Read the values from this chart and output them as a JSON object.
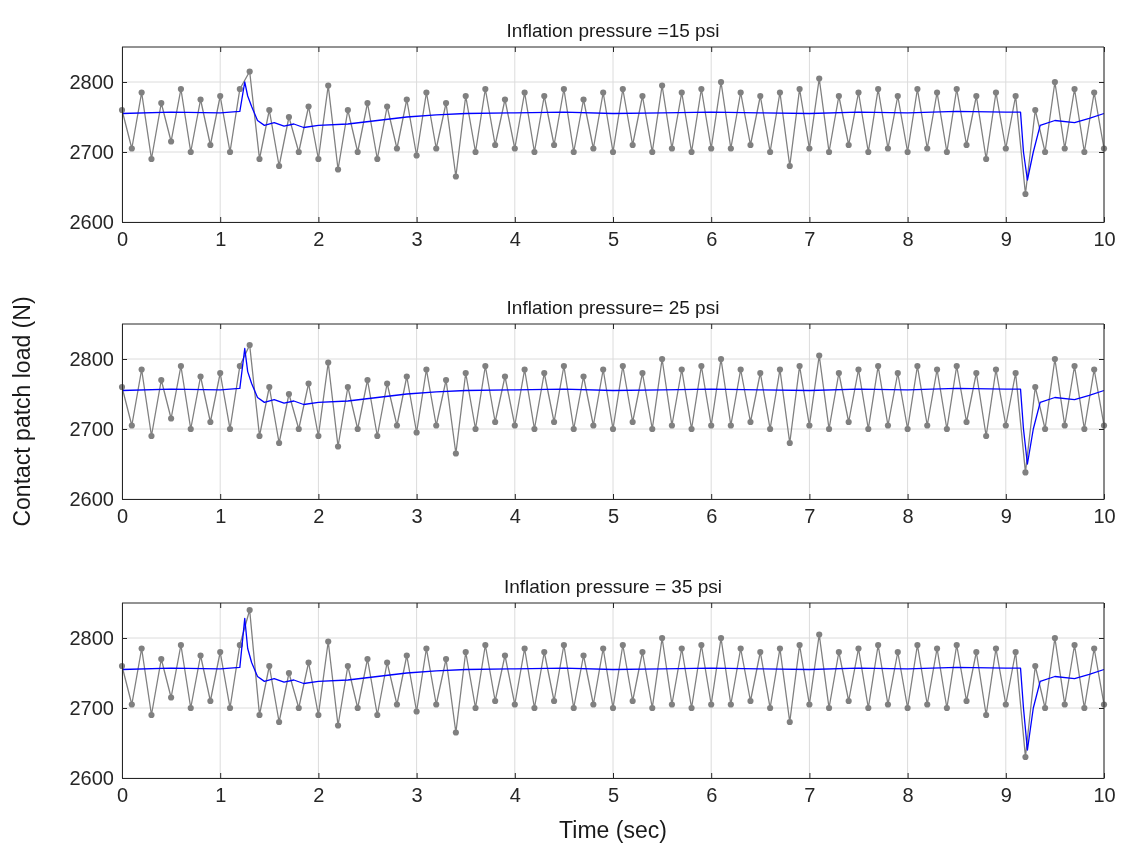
{
  "chart_data": [
    {
      "type": "line",
      "title": "Inflation pressure =15 psi",
      "xlim": [
        0,
        10
      ],
      "xticks": [
        0,
        1,
        2,
        3,
        4,
        5,
        6,
        7,
        8,
        9,
        10
      ],
      "ylim": [
        2600,
        2850
      ],
      "yticks": [
        2600,
        2700,
        2800
      ],
      "grid": true,
      "line_style": "solid",
      "x": [
        0,
        0.1,
        0.2,
        0.3,
        0.4,
        0.5,
        0.6,
        0.7,
        0.8,
        0.9,
        1,
        1.1,
        1.2,
        1.3,
        1.4,
        1.5,
        1.6,
        1.7,
        1.8,
        1.9,
        2,
        2.1,
        2.2,
        2.3,
        2.4,
        2.5,
        2.6,
        2.7,
        2.8,
        2.9,
        3,
        3.1,
        3.2,
        3.3,
        3.4,
        3.5,
        3.6,
        3.7,
        3.8,
        3.9,
        4,
        4.1,
        4.2,
        4.3,
        4.4,
        4.5,
        4.6,
        4.7,
        4.8,
        4.9,
        5,
        5.1,
        5.2,
        5.3,
        5.4,
        5.5,
        5.6,
        5.7,
        5.8,
        5.9,
        6,
        6.1,
        6.2,
        6.3,
        6.4,
        6.5,
        6.6,
        6.7,
        6.8,
        6.9,
        7,
        7.1,
        7.2,
        7.3,
        7.4,
        7.5,
        7.6,
        7.7,
        7.8,
        7.9,
        8,
        8.1,
        8.2,
        8.3,
        8.4,
        8.5,
        8.6,
        8.7,
        8.8,
        8.9,
        9,
        9.1,
        9.2,
        9.3,
        9.4,
        9.5,
        9.6,
        9.7,
        9.8,
        9.9,
        10
      ],
      "series": [
        {
          "color": "#808080",
          "marker": "circle",
          "values": [
            2760,
            2705,
            2785,
            2690,
            2770,
            2715,
            2790,
            2700,
            2775,
            2710,
            2780,
            2700,
            2790,
            2815,
            2690,
            2760,
            2680,
            2750,
            2700,
            2765,
            2690,
            2795,
            2675,
            2760,
            2700,
            2770,
            2690,
            2765,
            2705,
            2775,
            2695,
            2785,
            2705,
            2770,
            2665,
            2780,
            2700,
            2790,
            2710,
            2775,
            2705,
            2785,
            2700,
            2780,
            2710,
            2790,
            2700,
            2775,
            2705,
            2785,
            2700,
            2790,
            2710,
            2780,
            2700,
            2795,
            2705,
            2785,
            2700,
            2790,
            2705,
            2800,
            2705,
            2785,
            2710,
            2780,
            2700,
            2785,
            2680,
            2790,
            2705,
            2805,
            2700,
            2780,
            2710,
            2785,
            2700,
            2790,
            2705,
            2780,
            2700,
            2790,
            2705,
            2785,
            2700,
            2790,
            2710,
            2780,
            2690,
            2785,
            2705,
            2780,
            2640,
            2760,
            2700,
            2800,
            2705,
            2790,
            2700,
            2785,
            2705
          ]
        },
        {
          "color": "#0000ff",
          "marker": "none",
          "x": [
            0,
            0.5,
            1,
            1.2,
            1.25,
            1.28,
            1.32,
            1.38,
            1.45,
            1.55,
            1.65,
            1.75,
            1.85,
            2,
            2.3,
            2.6,
            2.9,
            3.2,
            3.5,
            4,
            4.5,
            5,
            5.5,
            6,
            6.5,
            7,
            7.5,
            8,
            8.5,
            9,
            9.15,
            9.18,
            9.22,
            9.28,
            9.35,
            9.5,
            9.7,
            9.85,
            10
          ],
          "values": [
            2755,
            2757,
            2756,
            2758,
            2800,
            2780,
            2765,
            2745,
            2738,
            2742,
            2737,
            2740,
            2735,
            2738,
            2740,
            2745,
            2750,
            2753,
            2755,
            2756,
            2757,
            2755,
            2756,
            2757,
            2756,
            2755,
            2757,
            2756,
            2758,
            2757,
            2757,
            2700,
            2660,
            2700,
            2738,
            2745,
            2742,
            2748,
            2755
          ]
        }
      ]
    },
    {
      "type": "line",
      "title": "Inflation pressure= 25 psi",
      "ylabel": "Contact patch load (N)",
      "xlim": [
        0,
        10
      ],
      "xticks": [
        0,
        1,
        2,
        3,
        4,
        5,
        6,
        7,
        8,
        9,
        10
      ],
      "ylim": [
        2600,
        2850
      ],
      "yticks": [
        2600,
        2700,
        2800
      ],
      "grid": true,
      "line_style": "solid",
      "x": [
        0,
        0.1,
        0.2,
        0.3,
        0.4,
        0.5,
        0.6,
        0.7,
        0.8,
        0.9,
        1,
        1.1,
        1.2,
        1.3,
        1.4,
        1.5,
        1.6,
        1.7,
        1.8,
        1.9,
        2,
        2.1,
        2.2,
        2.3,
        2.4,
        2.5,
        2.6,
        2.7,
        2.8,
        2.9,
        3,
        3.1,
        3.2,
        3.3,
        3.4,
        3.5,
        3.6,
        3.7,
        3.8,
        3.9,
        4,
        4.1,
        4.2,
        4.3,
        4.4,
        4.5,
        4.6,
        4.7,
        4.8,
        4.9,
        5,
        5.1,
        5.2,
        5.3,
        5.4,
        5.5,
        5.6,
        5.7,
        5.8,
        5.9,
        6,
        6.1,
        6.2,
        6.3,
        6.4,
        6.5,
        6.6,
        6.7,
        6.8,
        6.9,
        7,
        7.1,
        7.2,
        7.3,
        7.4,
        7.5,
        7.6,
        7.7,
        7.8,
        7.9,
        8,
        8.1,
        8.2,
        8.3,
        8.4,
        8.5,
        8.6,
        8.7,
        8.8,
        8.9,
        9,
        9.1,
        9.2,
        9.3,
        9.4,
        9.5,
        9.6,
        9.7,
        9.8,
        9.9,
        10
      ],
      "series": [
        {
          "color": "#808080",
          "marker": "circle",
          "values": [
            2760,
            2705,
            2785,
            2690,
            2770,
            2715,
            2790,
            2700,
            2775,
            2710,
            2780,
            2700,
            2790,
            2820,
            2690,
            2760,
            2680,
            2750,
            2700,
            2765,
            2690,
            2795,
            2675,
            2760,
            2700,
            2770,
            2690,
            2765,
            2705,
            2775,
            2695,
            2785,
            2705,
            2770,
            2665,
            2780,
            2700,
            2790,
            2710,
            2775,
            2705,
            2785,
            2700,
            2780,
            2710,
            2790,
            2700,
            2775,
            2705,
            2785,
            2700,
            2790,
            2710,
            2780,
            2700,
            2800,
            2705,
            2785,
            2700,
            2790,
            2705,
            2800,
            2705,
            2785,
            2710,
            2780,
            2700,
            2785,
            2680,
            2790,
            2705,
            2805,
            2700,
            2780,
            2710,
            2785,
            2700,
            2790,
            2705,
            2780,
            2700,
            2790,
            2705,
            2785,
            2700,
            2790,
            2710,
            2780,
            2690,
            2785,
            2705,
            2780,
            2638,
            2760,
            2700,
            2800,
            2705,
            2790,
            2700,
            2785,
            2705
          ]
        },
        {
          "color": "#0000ff",
          "marker": "none",
          "x": [
            0,
            0.5,
            1,
            1.2,
            1.25,
            1.28,
            1.32,
            1.38,
            1.45,
            1.55,
            1.65,
            1.75,
            1.85,
            2,
            2.3,
            2.6,
            2.9,
            3.2,
            3.5,
            4,
            4.5,
            5,
            5.5,
            6,
            6.5,
            7,
            7.5,
            8,
            8.5,
            9,
            9.15,
            9.18,
            9.22,
            9.28,
            9.35,
            9.5,
            9.7,
            9.85,
            10
          ],
          "values": [
            2755,
            2757,
            2756,
            2758,
            2815,
            2782,
            2765,
            2745,
            2738,
            2742,
            2737,
            2740,
            2735,
            2738,
            2740,
            2745,
            2750,
            2753,
            2755,
            2756,
            2757,
            2755,
            2756,
            2757,
            2756,
            2755,
            2757,
            2756,
            2758,
            2757,
            2757,
            2700,
            2650,
            2700,
            2738,
            2745,
            2742,
            2748,
            2755
          ]
        }
      ]
    },
    {
      "type": "line",
      "title": "Inflation pressure = 35 psi",
      "xlabel": "Time (sec)",
      "xlim": [
        0,
        10
      ],
      "xticks": [
        0,
        1,
        2,
        3,
        4,
        5,
        6,
        7,
        8,
        9,
        10
      ],
      "ylim": [
        2600,
        2850
      ],
      "yticks": [
        2600,
        2700,
        2800
      ],
      "grid": true,
      "line_style": "solid",
      "x": [
        0,
        0.1,
        0.2,
        0.3,
        0.4,
        0.5,
        0.6,
        0.7,
        0.8,
        0.9,
        1,
        1.1,
        1.2,
        1.3,
        1.4,
        1.5,
        1.6,
        1.7,
        1.8,
        1.9,
        2,
        2.1,
        2.2,
        2.3,
        2.4,
        2.5,
        2.6,
        2.7,
        2.8,
        2.9,
        3,
        3.1,
        3.2,
        3.3,
        3.4,
        3.5,
        3.6,
        3.7,
        3.8,
        3.9,
        4,
        4.1,
        4.2,
        4.3,
        4.4,
        4.5,
        4.6,
        4.7,
        4.8,
        4.9,
        5,
        5.1,
        5.2,
        5.3,
        5.4,
        5.5,
        5.6,
        5.7,
        5.8,
        5.9,
        6,
        6.1,
        6.2,
        6.3,
        6.4,
        6.5,
        6.6,
        6.7,
        6.8,
        6.9,
        7,
        7.1,
        7.2,
        7.3,
        7.4,
        7.5,
        7.6,
        7.7,
        7.8,
        7.9,
        8,
        8.1,
        8.2,
        8.3,
        8.4,
        8.5,
        8.6,
        8.7,
        8.8,
        8.9,
        9,
        9.1,
        9.2,
        9.3,
        9.4,
        9.5,
        9.6,
        9.7,
        9.8,
        9.9,
        10
      ],
      "series": [
        {
          "color": "#808080",
          "marker": "circle",
          "values": [
            2760,
            2705,
            2785,
            2690,
            2770,
            2715,
            2790,
            2700,
            2775,
            2710,
            2780,
            2700,
            2790,
            2840,
            2690,
            2760,
            2680,
            2750,
            2700,
            2765,
            2690,
            2795,
            2675,
            2760,
            2700,
            2770,
            2690,
            2765,
            2705,
            2775,
            2695,
            2785,
            2705,
            2770,
            2665,
            2780,
            2700,
            2790,
            2710,
            2775,
            2705,
            2785,
            2700,
            2780,
            2710,
            2790,
            2700,
            2775,
            2705,
            2785,
            2700,
            2790,
            2710,
            2780,
            2700,
            2800,
            2705,
            2785,
            2700,
            2790,
            2705,
            2800,
            2705,
            2785,
            2710,
            2780,
            2700,
            2785,
            2680,
            2790,
            2705,
            2805,
            2700,
            2780,
            2710,
            2785,
            2700,
            2790,
            2705,
            2780,
            2700,
            2790,
            2705,
            2785,
            2700,
            2790,
            2710,
            2780,
            2690,
            2785,
            2705,
            2780,
            2630,
            2760,
            2700,
            2800,
            2705,
            2790,
            2700,
            2785,
            2705
          ]
        },
        {
          "color": "#0000ff",
          "marker": "none",
          "x": [
            0,
            0.5,
            1,
            1.2,
            1.25,
            1.28,
            1.32,
            1.38,
            1.45,
            1.55,
            1.65,
            1.75,
            1.85,
            2,
            2.3,
            2.6,
            2.9,
            3.2,
            3.5,
            4,
            4.5,
            5,
            5.5,
            6,
            6.5,
            7,
            7.5,
            8,
            8.5,
            9,
            9.15,
            9.18,
            9.22,
            9.28,
            9.35,
            9.5,
            9.7,
            9.85,
            10
          ],
          "values": [
            2755,
            2757,
            2756,
            2758,
            2828,
            2785,
            2765,
            2745,
            2738,
            2742,
            2737,
            2740,
            2735,
            2738,
            2740,
            2745,
            2750,
            2753,
            2755,
            2756,
            2757,
            2755,
            2756,
            2757,
            2756,
            2755,
            2757,
            2756,
            2758,
            2757,
            2757,
            2700,
            2640,
            2700,
            2738,
            2745,
            2742,
            2748,
            2755
          ]
        }
      ]
    }
  ]
}
